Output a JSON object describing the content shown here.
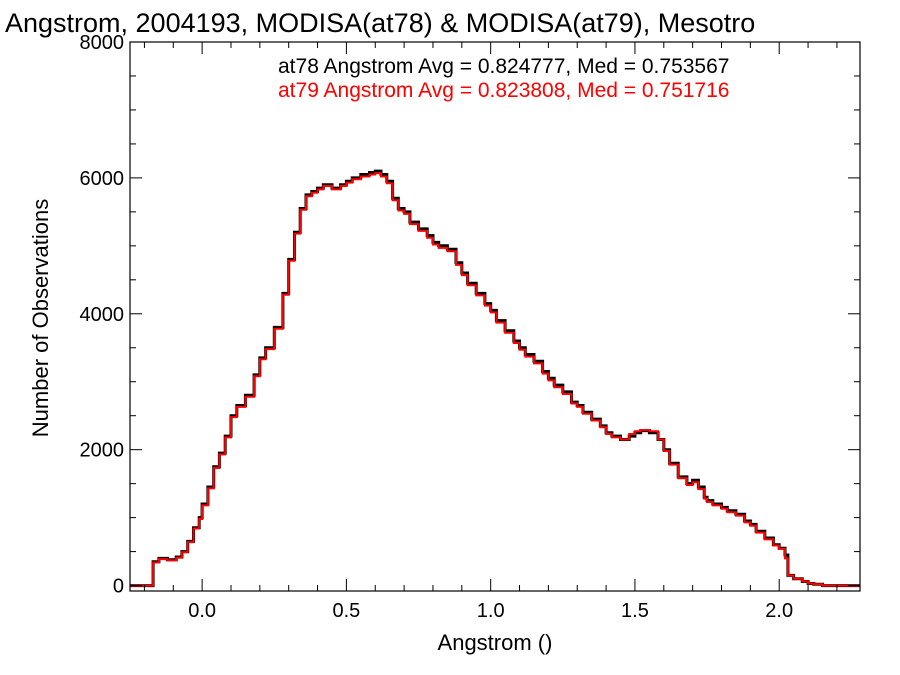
{
  "chart_data": {
    "type": "line",
    "title": "Angstrom, 2004193, MODISA(at78) & MODISA(at79), Mesotro",
    "xlabel": "Angstrom ()",
    "ylabel": "Number of Observations",
    "xlim": [
      -0.25,
      2.28
    ],
    "ylim": [
      -80,
      8000
    ],
    "x_ticks": [
      0.0,
      0.5,
      1.0,
      1.5,
      2.0
    ],
    "x_tick_labels": [
      "0.0",
      "0.5",
      "1.0",
      "1.5",
      "2.0"
    ],
    "y_ticks": [
      0,
      2000,
      4000,
      6000,
      8000
    ],
    "y_tick_labels": [
      "0",
      "2000",
      "4000",
      "6000",
      "8000"
    ],
    "grid": false,
    "legend_position": "top-right",
    "annotations": [
      {
        "text": "at78 Angstrom Avg = 0.824777, Med = 0.753567",
        "color": "#000000"
      },
      {
        "text": "at79 Angstrom Avg = 0.823808, Med = 0.751716",
        "color": "#ff0000"
      }
    ],
    "step_width": 0.01,
    "series": [
      {
        "color": "#000000",
        "x": [
          -0.25,
          -0.18,
          -0.17,
          -0.15,
          -0.12,
          -0.09,
          -0.07,
          -0.05,
          -0.03,
          -0.01,
          0.0,
          0.02,
          0.04,
          0.06,
          0.08,
          0.1,
          0.12,
          0.15,
          0.18,
          0.2,
          0.22,
          0.25,
          0.28,
          0.3,
          0.32,
          0.34,
          0.36,
          0.38,
          0.4,
          0.42,
          0.45,
          0.48,
          0.5,
          0.52,
          0.55,
          0.58,
          0.6,
          0.62,
          0.64,
          0.66,
          0.68,
          0.7,
          0.72,
          0.75,
          0.78,
          0.8,
          0.82,
          0.85,
          0.88,
          0.9,
          0.92,
          0.95,
          0.98,
          1.0,
          1.02,
          1.05,
          1.08,
          1.1,
          1.12,
          1.15,
          1.18,
          1.2,
          1.22,
          1.25,
          1.28,
          1.3,
          1.32,
          1.35,
          1.38,
          1.4,
          1.42,
          1.45,
          1.48,
          1.5,
          1.52,
          1.55,
          1.58,
          1.6,
          1.62,
          1.65,
          1.68,
          1.7,
          1.72,
          1.74,
          1.75,
          1.77,
          1.8,
          1.82,
          1.85,
          1.88,
          1.9,
          1.92,
          1.95,
          1.98,
          2.0,
          2.02,
          2.03,
          2.05,
          2.08,
          2.1,
          2.12,
          2.15,
          2.28
        ],
        "values": [
          0,
          0,
          350,
          400,
          380,
          420,
          500,
          650,
          850,
          1000,
          1200,
          1450,
          1750,
          1950,
          2200,
          2500,
          2650,
          2800,
          3100,
          3350,
          3500,
          3800,
          4300,
          4800,
          5200,
          5550,
          5750,
          5800,
          5850,
          5900,
          5850,
          5900,
          5950,
          6000,
          6050,
          6080,
          6100,
          6050,
          5950,
          5700,
          5550,
          5500,
          5350,
          5250,
          5150,
          5050,
          5000,
          4950,
          4750,
          4600,
          4450,
          4300,
          4150,
          4050,
          3900,
          3750,
          3600,
          3500,
          3400,
          3300,
          3150,
          3050,
          2950,
          2850,
          2700,
          2650,
          2550,
          2450,
          2350,
          2250,
          2200,
          2150,
          2200,
          2250,
          2280,
          2250,
          2150,
          2000,
          1800,
          1600,
          1500,
          1550,
          1450,
          1300,
          1250,
          1200,
          1150,
          1100,
          1050,
          950,
          900,
          800,
          700,
          600,
          550,
          450,
          150,
          100,
          60,
          30,
          20,
          0,
          0
        ]
      },
      {
        "color": "#ff0000",
        "x": [
          -0.25,
          -0.18,
          -0.17,
          -0.15,
          -0.12,
          -0.09,
          -0.07,
          -0.05,
          -0.03,
          -0.01,
          0.0,
          0.02,
          0.04,
          0.06,
          0.08,
          0.1,
          0.12,
          0.15,
          0.18,
          0.2,
          0.22,
          0.25,
          0.28,
          0.3,
          0.32,
          0.34,
          0.36,
          0.38,
          0.4,
          0.42,
          0.45,
          0.48,
          0.5,
          0.52,
          0.55,
          0.58,
          0.6,
          0.62,
          0.64,
          0.66,
          0.68,
          0.7,
          0.72,
          0.75,
          0.78,
          0.8,
          0.82,
          0.85,
          0.88,
          0.9,
          0.92,
          0.95,
          0.98,
          1.0,
          1.02,
          1.05,
          1.08,
          1.1,
          1.12,
          1.15,
          1.18,
          1.2,
          1.22,
          1.25,
          1.28,
          1.3,
          1.32,
          1.35,
          1.38,
          1.4,
          1.42,
          1.45,
          1.48,
          1.5,
          1.52,
          1.55,
          1.58,
          1.6,
          1.62,
          1.65,
          1.68,
          1.7,
          1.72,
          1.74,
          1.75,
          1.77,
          1.8,
          1.82,
          1.85,
          1.88,
          1.9,
          1.92,
          1.95,
          1.98,
          2.0,
          2.02,
          2.03,
          2.05,
          2.08,
          2.1,
          2.12,
          2.15,
          2.28
        ],
        "values": [
          0,
          0,
          340,
          390,
          370,
          410,
          490,
          640,
          840,
          980,
          1180,
          1430,
          1730,
          1930,
          2180,
          2480,
          2630,
          2780,
          3080,
          3330,
          3480,
          3780,
          4280,
          4780,
          5180,
          5530,
          5730,
          5780,
          5830,
          5880,
          5830,
          5880,
          5930,
          5980,
          6020,
          6050,
          6070,
          6020,
          5920,
          5670,
          5520,
          5470,
          5320,
          5220,
          5120,
          5020,
          4970,
          4920,
          4720,
          4570,
          4420,
          4270,
          4120,
          4020,
          3870,
          3720,
          3570,
          3470,
          3370,
          3270,
          3120,
          3020,
          2920,
          2820,
          2680,
          2630,
          2530,
          2430,
          2330,
          2230,
          2180,
          2150,
          2230,
          2270,
          2290,
          2270,
          2150,
          1980,
          1780,
          1580,
          1480,
          1520,
          1420,
          1280,
          1230,
          1180,
          1130,
          1080,
          1030,
          930,
          880,
          780,
          680,
          590,
          540,
          400,
          150,
          100,
          60,
          30,
          20,
          0,
          0
        ]
      }
    ]
  }
}
